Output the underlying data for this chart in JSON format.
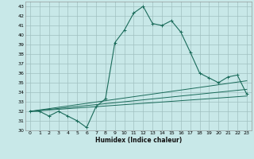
{
  "xlabel": "Humidex (Indice chaleur)",
  "bg_color": "#c8e8e8",
  "grid_color": "#a0c0c0",
  "line_color": "#1a6b5a",
  "xlim": [
    -0.5,
    23.5
  ],
  "ylim": [
    30,
    43.5
  ],
  "xticks": [
    0,
    1,
    2,
    3,
    4,
    5,
    6,
    7,
    8,
    9,
    10,
    11,
    12,
    13,
    14,
    15,
    16,
    17,
    18,
    19,
    20,
    21,
    22,
    23
  ],
  "yticks": [
    30,
    31,
    32,
    33,
    34,
    35,
    36,
    37,
    38,
    39,
    40,
    41,
    42,
    43
  ],
  "series": {
    "main": {
      "x": [
        0,
        1,
        2,
        3,
        4,
        5,
        6,
        7,
        8,
        9,
        10,
        11,
        12,
        13,
        14,
        15,
        16,
        17,
        18,
        19,
        20,
        21,
        22,
        23
      ],
      "y": [
        32,
        32,
        31.5,
        32,
        31.5,
        31,
        30.3,
        32.5,
        33.3,
        39.2,
        40.5,
        42.3,
        43.0,
        41.2,
        41.0,
        41.5,
        40.3,
        38.2,
        36.0,
        35.5,
        35.0,
        35.6,
        35.8,
        33.8
      ]
    },
    "line1": {
      "x": [
        0,
        23
      ],
      "y": [
        32,
        35.2
      ]
    },
    "line2": {
      "x": [
        0,
        23
      ],
      "y": [
        32,
        34.3
      ]
    },
    "line3": {
      "x": [
        0,
        23
      ],
      "y": [
        32,
        33.6
      ]
    }
  }
}
